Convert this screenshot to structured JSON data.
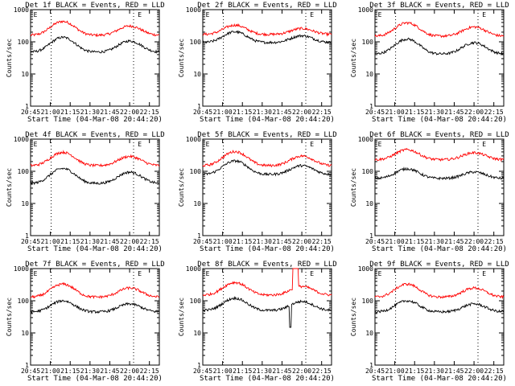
{
  "chart_data": [
    {
      "type": "line",
      "title": "Det 1f BLACK = Events, RED = LLD",
      "xlabel": "Start Time (04-Mar-08 20:44:20)",
      "ylabel": "Counts/sec",
      "yscale": "log",
      "ylim": [
        1,
        1000
      ],
      "xticks": [
        "20:45",
        "21:00",
        "21:15",
        "21:30",
        "21:45",
        "22:00",
        "22:15"
      ],
      "xrange_min": [
        0,
        100
      ],
      "ytick_labels": [
        "1",
        "10",
        "100",
        "1000"
      ],
      "dotted_lines_min": [
        16,
        80
      ],
      "markers": [
        {
          "text": "E",
          "x_min": 1
        },
        {
          "text": "E",
          "x_min": 82
        }
      ],
      "series": [
        {
          "color": "#ff0000",
          "base": 160,
          "amp": 270,
          "amp2": 150
        },
        {
          "color": "#000000",
          "base": 48,
          "amp": 90,
          "amp2": 58
        }
      ]
    },
    {
      "type": "line",
      "title": "Det 2f BLACK = Events, RED = LLD",
      "xlabel": "Start Time (04-Mar-08 20:44:20)",
      "ylabel": "Counts/sec",
      "yscale": "log",
      "ylim": [
        1,
        1000
      ],
      "xticks": [
        "20:45",
        "21:00",
        "21:15",
        "21:30",
        "21:45",
        "22:00",
        "22:15"
      ],
      "xrange_min": [
        0,
        100
      ],
      "ytick_labels": [
        "1",
        "10",
        "100",
        "1000"
      ],
      "dotted_lines_min": [
        16,
        80
      ],
      "markers": [
        {
          "text": "E",
          "x_min": 1
        },
        {
          "text": "E",
          "x_min": 82
        }
      ],
      "series": [
        {
          "color": "#ff0000",
          "base": 170,
          "amp": 160,
          "amp2": 90
        },
        {
          "color": "#000000",
          "base": 95,
          "amp": 110,
          "amp2": 60
        }
      ]
    },
    {
      "type": "line",
      "title": "Det 3f BLACK = Events, RED = LLD",
      "xlabel": "Start Time (04-Mar-08 20:44:20)",
      "ylabel": "Counts/sec",
      "yscale": "log",
      "ylim": [
        1,
        1000
      ],
      "xticks": [
        "20:45",
        "21:00",
        "21:15",
        "21:30",
        "21:45",
        "22:00",
        "22:15"
      ],
      "xrange_min": [
        0,
        100
      ],
      "ytick_labels": [
        "1",
        "10",
        "100",
        "1000"
      ],
      "dotted_lines_min": [
        16,
        80
      ],
      "markers": [
        {
          "text": "E",
          "x_min": 1
        },
        {
          "text": "E",
          "x_min": 82
        }
      ],
      "series": [
        {
          "color": "#ff0000",
          "base": 150,
          "amp": 240,
          "amp2": 140
        },
        {
          "color": "#000000",
          "base": 42,
          "amp": 80,
          "amp2": 52
        }
      ]
    },
    {
      "type": "line",
      "title": "Det 4f BLACK = Events, RED = LLD",
      "xlabel": "Start Time (04-Mar-08 20:44:20)",
      "ylabel": "Counts/sec",
      "yscale": "log",
      "ylim": [
        1,
        1000
      ],
      "xticks": [
        "20:45",
        "21:00",
        "21:15",
        "21:30",
        "21:45",
        "22:00",
        "22:15"
      ],
      "xrange_min": [
        0,
        100
      ],
      "ytick_labels": [
        "1",
        "10",
        "100",
        "1000"
      ],
      "dotted_lines_min": [
        16,
        80
      ],
      "markers": [
        {
          "text": "E",
          "x_min": 1
        },
        {
          "text": "E",
          "x_min": 82
        }
      ],
      "series": [
        {
          "color": "#ff0000",
          "base": 150,
          "amp": 240,
          "amp2": 140
        },
        {
          "color": "#000000",
          "base": 42,
          "amp": 80,
          "amp2": 52
        }
      ]
    },
    {
      "type": "line",
      "title": "Det 5f BLACK = Events, RED = LLD",
      "xlabel": "Start Time (04-Mar-08 20:44:20)",
      "ylabel": "Counts/sec",
      "yscale": "log",
      "ylim": [
        1,
        1000
      ],
      "xticks": [
        "20:45",
        "21:00",
        "21:15",
        "21:30",
        "21:45",
        "22:00",
        "22:15"
      ],
      "xrange_min": [
        0,
        100
      ],
      "ytick_labels": [
        "1",
        "10",
        "100",
        "1000"
      ],
      "dotted_lines_min": [
        16,
        80
      ],
      "markers": [
        {
          "text": "E",
          "x_min": 1
        },
        {
          "text": "E",
          "x_min": 82
        }
      ],
      "series": [
        {
          "color": "#ff0000",
          "base": 150,
          "amp": 260,
          "amp2": 150
        },
        {
          "color": "#000000",
          "base": 80,
          "amp": 130,
          "amp2": 70
        }
      ]
    },
    {
      "type": "line",
      "title": "Det 6f BLACK = Events, RED = LLD",
      "xlabel": "Start Time (04-Mar-08 20:44:20)",
      "ylabel": "Counts/sec",
      "yscale": "log",
      "ylim": [
        1,
        1000
      ],
      "xticks": [
        "20:45",
        "21:00",
        "21:15",
        "21:30",
        "21:45",
        "22:00",
        "22:15"
      ],
      "xrange_min": [
        0,
        100
      ],
      "ytick_labels": [
        "1",
        "10",
        "100",
        "1000"
      ],
      "dotted_lines_min": [
        16,
        80
      ],
      "markers": [
        {
          "text": "E",
          "x_min": 1
        },
        {
          "text": "E",
          "x_min": 82
        }
      ],
      "series": [
        {
          "color": "#ff0000",
          "base": 230,
          "amp": 240,
          "amp2": 150
        },
        {
          "color": "#000000",
          "base": 60,
          "amp": 60,
          "amp2": 35
        }
      ]
    },
    {
      "type": "line",
      "title": "Det 7f BLACK = Events, RED = LLD",
      "xlabel": "Start Time (04-Mar-08 20:44:20)",
      "ylabel": "Counts/sec",
      "yscale": "log",
      "ylim": [
        1,
        1000
      ],
      "xticks": [
        "20:45",
        "21:00",
        "21:15",
        "21:30",
        "21:45",
        "22:00",
        "22:15"
      ],
      "xrange_min": [
        0,
        100
      ],
      "ytick_labels": [
        "1",
        "10",
        "100",
        "1000"
      ],
      "dotted_lines_min": [
        16,
        80
      ],
      "markers": [
        {
          "text": "E",
          "x_min": 1
        },
        {
          "text": "E",
          "x_min": 82
        }
      ],
      "series": [
        {
          "color": "#ff0000",
          "base": 130,
          "amp": 200,
          "amp2": 120
        },
        {
          "color": "#000000",
          "base": 45,
          "amp": 55,
          "amp2": 35
        }
      ]
    },
    {
      "type": "line",
      "title": "Det 8f BLACK = Events, RED = LLD",
      "xlabel": "Start Time (04-Mar-08 20:44:20)",
      "ylabel": "Counts/sec",
      "yscale": "log",
      "ylim": [
        1,
        1000
      ],
      "xticks": [
        "20:45",
        "21:00",
        "21:15",
        "21:30",
        "21:45",
        "22:00",
        "22:15"
      ],
      "xrange_min": [
        0,
        100
      ],
      "ytick_labels": [
        "1",
        "10",
        "100",
        "1000"
      ],
      "dotted_lines_min": [
        16,
        80
      ],
      "markers": [
        {
          "text": "E",
          "x_min": 1
        },
        {
          "text": "E",
          "x_min": 82
        }
      ],
      "series": [
        {
          "color": "#ff0000",
          "base": 150,
          "amp": 220,
          "amp2": 130
        },
        {
          "color": "#000000",
          "base": 50,
          "amp": 70,
          "amp2": 45
        }
      ],
      "spike_min": [
        70,
        74
      ]
    },
    {
      "type": "line",
      "title": "Det 9f BLACK = Events, RED = LLD",
      "xlabel": "Start Time (04-Mar-08 20:44:20)",
      "ylabel": "Counts/sec",
      "yscale": "log",
      "ylim": [
        1,
        1000
      ],
      "xticks": [
        "20:45",
        "21:00",
        "21:15",
        "21:30",
        "21:45",
        "22:00",
        "22:15"
      ],
      "xrange_min": [
        0,
        100
      ],
      "ytick_labels": [
        "1",
        "10",
        "100",
        "1000"
      ],
      "dotted_lines_min": [
        16,
        80
      ],
      "markers": [
        {
          "text": "E",
          "x_min": 1
        },
        {
          "text": "E",
          "x_min": 82
        }
      ],
      "series": [
        {
          "color": "#ff0000",
          "base": 130,
          "amp": 200,
          "amp2": 120
        },
        {
          "color": "#000000",
          "base": 45,
          "amp": 55,
          "amp2": 35
        }
      ]
    }
  ]
}
